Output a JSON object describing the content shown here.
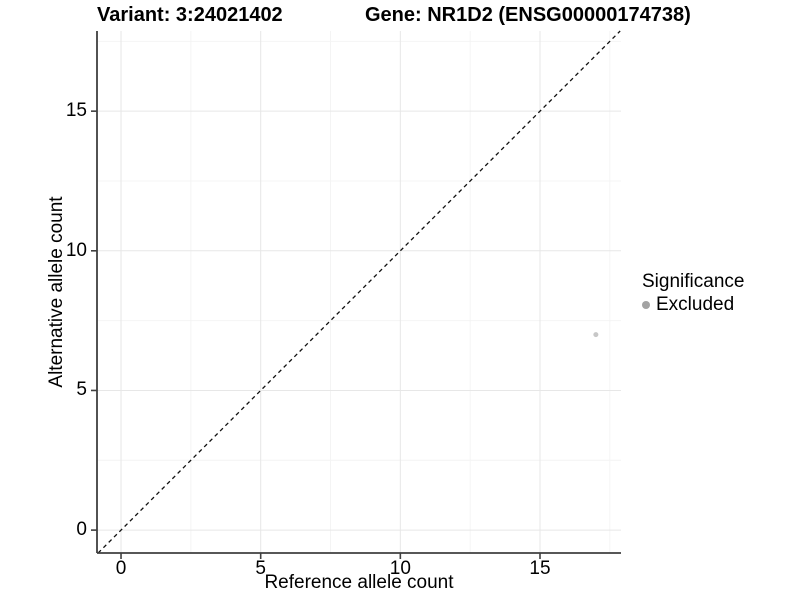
{
  "header": {
    "variant_title": "Variant: 3:24021402",
    "gene_title": "Gene: NR1D2 (ENSG00000174738)"
  },
  "chart_data": {
    "type": "scatter",
    "title": "Variant: 3:24021402  /  Gene: NR1D2 (ENSG00000174738)",
    "xlabel": "Reference allele count",
    "ylabel": "Alternative allele count",
    "x_ticks": [
      0,
      5,
      10,
      15
    ],
    "y_ticks": [
      0,
      5,
      10,
      15
    ],
    "x_minor_ticks": [
      2.5,
      7.5,
      12.5,
      17.5
    ],
    "y_minor_ticks": [
      2.5,
      7.5,
      12.5,
      17.5
    ],
    "xlim": [
      -0.86,
      17.9
    ],
    "ylim": [
      -0.82,
      17.87
    ],
    "grid": true,
    "points": [
      {
        "x": 17,
        "y": 7,
        "series": "Excluded"
      }
    ],
    "reference_line": {
      "slope": 1,
      "intercept": 0,
      "style": "dashed"
    },
    "legend": {
      "title": "Significance",
      "position": "right",
      "items": [
        {
          "label": "Excluded",
          "color": "#a3a3a3"
        }
      ]
    },
    "colors": {
      "point": "#c7c7c7",
      "axis": "#3f3f3f",
      "grid_major": "#e7e7e7",
      "grid_minor": "#f4f4f4",
      "dashed_line": "#111111",
      "text": "#000000"
    }
  }
}
